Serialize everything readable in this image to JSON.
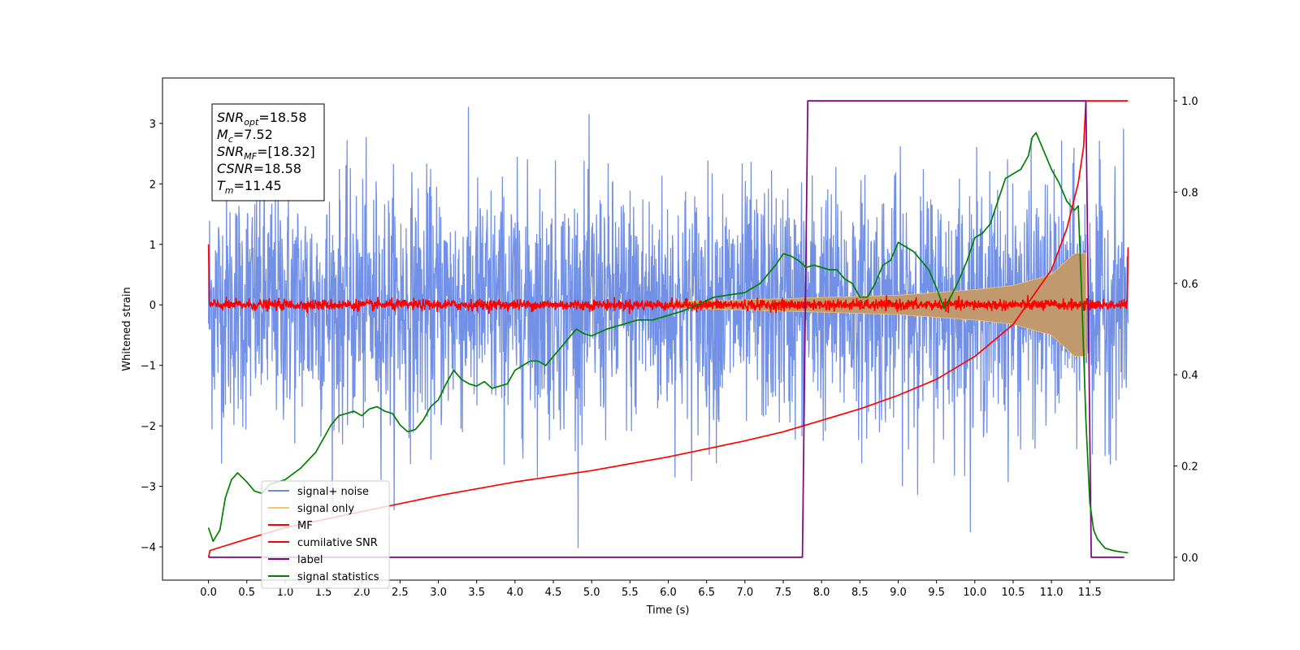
{
  "chart_data": {
    "type": "line",
    "title": "",
    "xlabel": "Time (s)",
    "ylabel": "Whitened strain",
    "y2label": "",
    "xlim": [
      -0.6,
      12.6
    ],
    "ylim": [
      -4.55,
      3.75
    ],
    "y2lim": [
      -0.05,
      1.05
    ],
    "xticks": [
      0.0,
      0.5,
      1.0,
      1.5,
      2.0,
      2.5,
      3.0,
      3.5,
      4.0,
      4.5,
      5.0,
      5.5,
      6.0,
      6.5,
      7.0,
      7.5,
      8.0,
      8.5,
      9.0,
      9.5,
      10.0,
      10.5,
      11.0,
      11.5
    ],
    "xtick_labels": [
      "0.0",
      "0.5",
      "1.0",
      "1.5",
      "2.0",
      "2.5",
      "3.0",
      "3.5",
      "4.0",
      "4.5",
      "5.0",
      "5.5",
      "6.0",
      "6.5",
      "7.0",
      "7.5",
      "8.0",
      "8.5",
      "9.0",
      "9.5",
      "10.0",
      "10.5",
      "11.0",
      "11.5"
    ],
    "yticks": [
      -4,
      -3,
      -2,
      -1,
      0,
      1,
      2,
      3
    ],
    "ytick_labels": [
      "−4",
      "−3",
      "−2",
      "−1",
      "0",
      "1",
      "2",
      "3"
    ],
    "y2ticks": [
      0.0,
      0.2,
      0.4,
      0.6,
      0.8,
      1.0
    ],
    "y2tick_labels": [
      "0.0",
      "0.2",
      "0.4",
      "0.6",
      "0.8",
      "1.0"
    ],
    "grid": false,
    "legend_position": "lower-left",
    "annotation": {
      "lines": [
        {
          "base": "SNR",
          "sub": "opt",
          "rest": "=18.58"
        },
        {
          "base": "M",
          "sub": "c",
          "rest": "=7.52"
        },
        {
          "base": "SNR",
          "sub": "MF",
          "rest": "=[18.32]"
        },
        {
          "base": "CSNR",
          "sub": "",
          "rest": "=18.58"
        },
        {
          "base": "T",
          "sub": "m",
          "rest": "=11.45"
        }
      ]
    },
    "series": [
      {
        "name": "signal+ noise",
        "axis": "left",
        "color": "#6a8be5",
        "kind": "noise",
        "x_range": [
          0.0,
          12.0
        ],
        "std": 1.0,
        "range": [
          -4.15,
          3.55
        ]
      },
      {
        "name": "signal only",
        "axis": "left",
        "color": "#f5c46b",
        "kind": "chirp",
        "merger_time": 11.45,
        "amplitude_at_merger": 0.85,
        "envelope": [
          [
            6.0,
            0.05
          ],
          [
            8.0,
            0.12
          ],
          [
            9.0,
            0.16
          ],
          [
            10.0,
            0.25
          ],
          [
            10.5,
            0.32
          ],
          [
            11.0,
            0.5
          ],
          [
            11.3,
            0.85
          ],
          [
            11.45,
            0.85
          ]
        ]
      },
      {
        "name": "MF",
        "axis": "left",
        "color": "#ff0000",
        "kind": "noise",
        "x_range": [
          0.0,
          12.0
        ],
        "std": 0.045,
        "edge_values": [
          1.0,
          0.95
        ]
      },
      {
        "name": "cumilative SNR",
        "axis": "right",
        "color": "#ff0000",
        "x": [
          0.0,
          0.02,
          0.5,
          1.0,
          2.0,
          3.0,
          4.0,
          5.0,
          6.0,
          7.0,
          7.5,
          8.0,
          8.5,
          9.0,
          9.5,
          10.0,
          10.5,
          11.0,
          11.2,
          11.35,
          11.42,
          11.45,
          12.0
        ],
        "y": [
          0.0,
          0.015,
          0.04,
          0.065,
          0.1,
          0.135,
          0.165,
          0.19,
          0.22,
          0.255,
          0.275,
          0.3,
          0.325,
          0.355,
          0.39,
          0.44,
          0.51,
          0.63,
          0.72,
          0.82,
          0.9,
          1.0,
          1.0
        ]
      },
      {
        "name": "label",
        "axis": "right",
        "color": "#800080",
        "x": [
          0.0,
          7.75,
          7.82,
          11.42,
          11.45,
          11.52,
          11.95
        ],
        "y": [
          0.0,
          0.0,
          1.0,
          1.0,
          1.0,
          0.0,
          0.0
        ]
      },
      {
        "name": "signal statistics",
        "axis": "right",
        "color": "#008000",
        "x": [
          0.0,
          0.06,
          0.15,
          0.22,
          0.3,
          0.38,
          0.5,
          0.6,
          0.7,
          0.8,
          1.0,
          1.2,
          1.4,
          1.6,
          1.7,
          1.8,
          1.9,
          2.0,
          2.1,
          2.2,
          2.3,
          2.4,
          2.5,
          2.6,
          2.7,
          2.8,
          2.9,
          3.0,
          3.1,
          3.2,
          3.3,
          3.4,
          3.5,
          3.6,
          3.7,
          3.8,
          3.9,
          4.0,
          4.1,
          4.2,
          4.3,
          4.4,
          4.5,
          4.6,
          4.7,
          4.8,
          4.9,
          5.0,
          5.2,
          5.4,
          5.6,
          5.8,
          6.0,
          6.2,
          6.4,
          6.6,
          6.8,
          7.0,
          7.2,
          7.4,
          7.5,
          7.6,
          7.7,
          7.8,
          7.9,
          8.0,
          8.1,
          8.2,
          8.3,
          8.4,
          8.5,
          8.6,
          8.7,
          8.8,
          8.9,
          9.0,
          9.1,
          9.2,
          9.3,
          9.4,
          9.5,
          9.6,
          9.7,
          9.8,
          9.9,
          10.0,
          10.1,
          10.2,
          10.3,
          10.4,
          10.5,
          10.6,
          10.7,
          10.75,
          10.8,
          10.9,
          11.0,
          11.1,
          11.2,
          11.3,
          11.35,
          11.4,
          11.45,
          11.5,
          11.55,
          11.6,
          11.7,
          11.8,
          11.9,
          12.0
        ],
        "y": [
          0.065,
          0.035,
          0.06,
          0.13,
          0.17,
          0.185,
          0.165,
          0.145,
          0.14,
          0.16,
          0.17,
          0.195,
          0.23,
          0.29,
          0.31,
          0.315,
          0.32,
          0.31,
          0.325,
          0.33,
          0.32,
          0.315,
          0.29,
          0.275,
          0.28,
          0.3,
          0.33,
          0.345,
          0.38,
          0.41,
          0.39,
          0.38,
          0.375,
          0.385,
          0.37,
          0.375,
          0.38,
          0.41,
          0.42,
          0.43,
          0.43,
          0.42,
          0.44,
          0.46,
          0.48,
          0.5,
          0.49,
          0.485,
          0.5,
          0.51,
          0.52,
          0.52,
          0.53,
          0.54,
          0.555,
          0.57,
          0.575,
          0.58,
          0.6,
          0.64,
          0.665,
          0.66,
          0.65,
          0.635,
          0.64,
          0.635,
          0.63,
          0.63,
          0.61,
          0.6,
          0.57,
          0.57,
          0.6,
          0.64,
          0.65,
          0.69,
          0.68,
          0.67,
          0.65,
          0.63,
          0.59,
          0.545,
          0.575,
          0.61,
          0.65,
          0.7,
          0.71,
          0.73,
          0.78,
          0.83,
          0.84,
          0.85,
          0.88,
          0.92,
          0.93,
          0.89,
          0.85,
          0.82,
          0.78,
          0.76,
          0.77,
          0.55,
          0.3,
          0.12,
          0.06,
          0.04,
          0.02,
          0.015,
          0.012,
          0.01
        ]
      }
    ]
  }
}
